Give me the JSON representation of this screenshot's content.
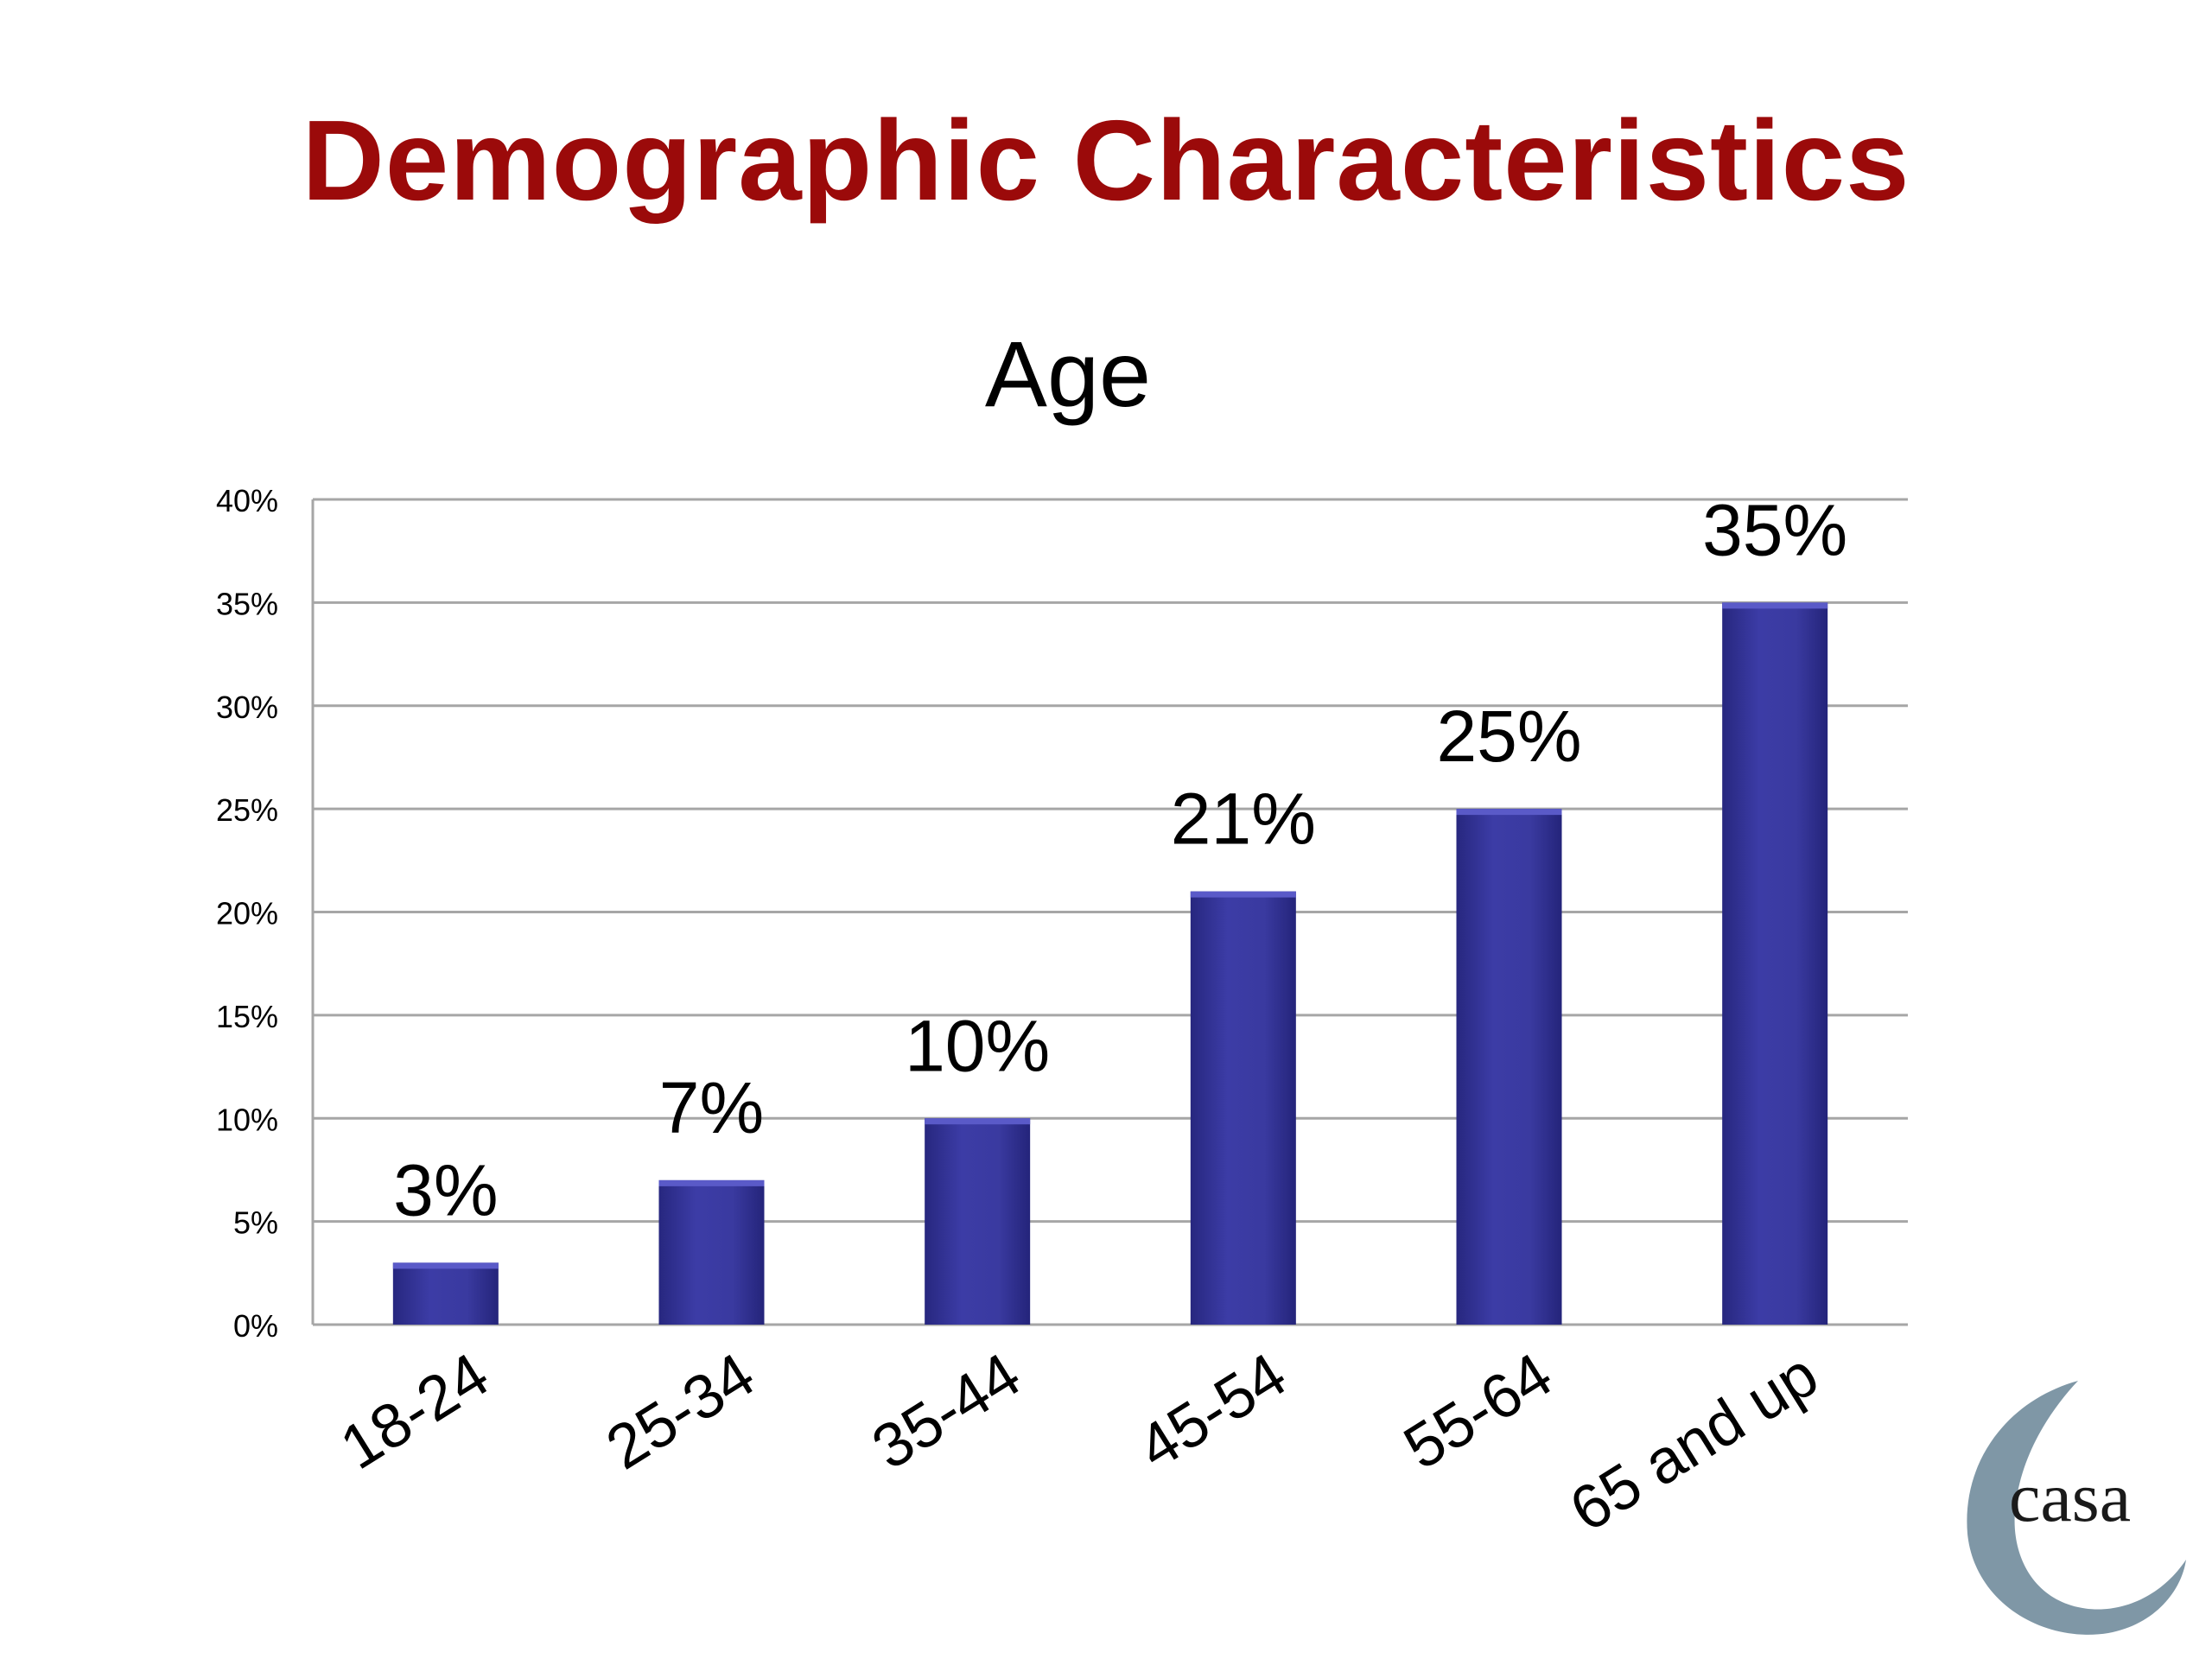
{
  "slide": {
    "title": "Demographic Characteristics"
  },
  "logo": {
    "text": "casa"
  },
  "colors": {
    "title": "#9b0a0a",
    "bar": "#3a3aa0",
    "bar_dark": "#232378",
    "grid": "#a6a6a6",
    "logo": "#7f97a6"
  },
  "chart_data": {
    "type": "bar",
    "title": "Age",
    "categories": [
      "18-24",
      "25-34",
      "35-44",
      "45-54",
      "55-64",
      "65 and up"
    ],
    "values": [
      3,
      7,
      10,
      21,
      25,
      35
    ],
    "data_labels": [
      "3%",
      "7%",
      "10%",
      "21%",
      "25%",
      "35%"
    ],
    "ylim": [
      0,
      40
    ],
    "yticks": [
      0,
      5,
      10,
      15,
      20,
      25,
      30,
      35,
      40
    ],
    "ytick_labels": [
      "0%",
      "5%",
      "10%",
      "15%",
      "20%",
      "25%",
      "30%",
      "35%",
      "40%"
    ],
    "xlabel": "",
    "ylabel": "",
    "grid": true,
    "legend": "none"
  }
}
